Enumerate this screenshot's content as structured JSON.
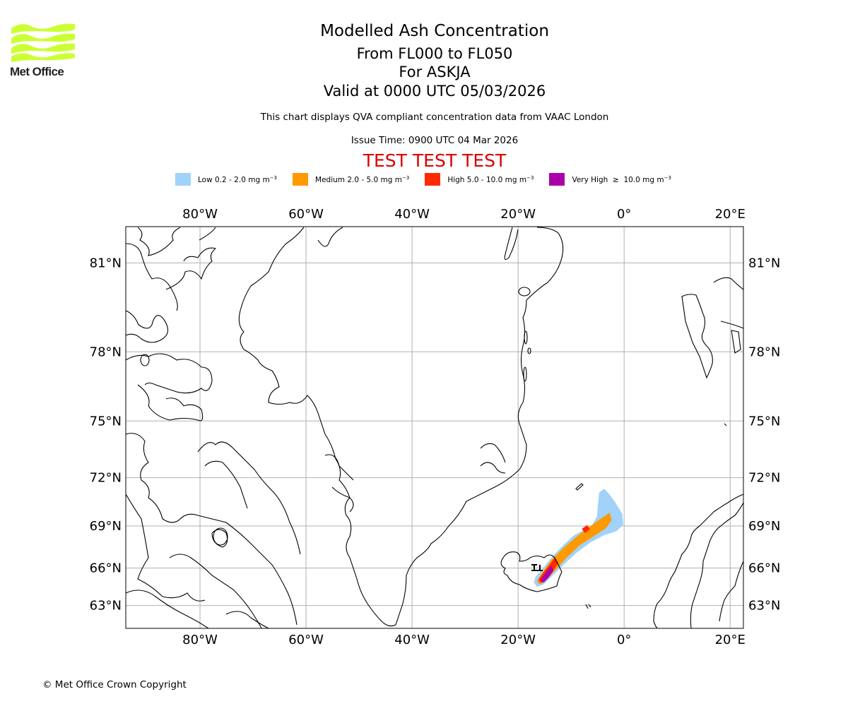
{
  "logo": {
    "text": "Met Office",
    "color": "#ccff33"
  },
  "header": {
    "title": "Modelled Ash Concentration",
    "level_range": "From FL000 to FL050",
    "volcano": "For ASKJA",
    "valid_time": "Valid at 0000 UTC 05/03/2026",
    "subtitle": "This chart displays QVA compliant concentration data from VAAC London",
    "issue_time": "Issue Time: 0900 UTC 04 Mar 2026",
    "test_banner": "TEST TEST TEST",
    "test_color": "#dd0000"
  },
  "legend": [
    {
      "label": "Low 0.2 - 2.0 mg m",
      "sup": "−3",
      "color": "#a0d2fa"
    },
    {
      "label": "Medium 2.0 - 5.0 mg m",
      "sup": "−3",
      "color": "#ff9900"
    },
    {
      "label": "High 5.0 - 10.0 mg m",
      "sup": "−3",
      "color": "#ff2a00"
    },
    {
      "label": "Very High  ≥  10.0 mg m",
      "sup": "−3",
      "color": "#aa00aa"
    }
  ],
  "chart_data": {
    "type": "map",
    "title": "Modelled Ash Concentration",
    "projection": "Mercator",
    "extent": {
      "lon": [
        -94,
        22.5
      ],
      "lat": [
        61,
        82
      ]
    },
    "lon_ticks": [
      {
        "value": -80,
        "label": "80°W"
      },
      {
        "value": -60,
        "label": "60°W"
      },
      {
        "value": -40,
        "label": "40°W"
      },
      {
        "value": -20,
        "label": "20°W"
      },
      {
        "value": 0,
        "label": "0°"
      },
      {
        "value": 20,
        "label": "20°E"
      }
    ],
    "lat_ticks": [
      {
        "value": 81,
        "label": "81°N"
      },
      {
        "value": 78,
        "label": "78°N"
      },
      {
        "value": 75,
        "label": "75°N"
      },
      {
        "value": 72,
        "label": "72°N"
      },
      {
        "value": 69,
        "label": "69°N"
      },
      {
        "value": 66,
        "label": "66°N"
      },
      {
        "value": 63,
        "label": "63°N"
      }
    ],
    "grid": true,
    "volcano_marker": {
      "name": "ASKJA",
      "lon": -16.75,
      "lat": 65.03
    },
    "ash_plume": [
      {
        "level": "Low",
        "color": "#a0d2fa",
        "polygon": [
          [
            -16.6,
            65.3
          ],
          [
            -15.5,
            65.8
          ],
          [
            -13.5,
            66.8
          ],
          [
            -11.5,
            67.6
          ],
          [
            -9.5,
            68.3
          ],
          [
            -7.5,
            68.7
          ],
          [
            -6,
            69.0
          ],
          [
            -5,
            69.6
          ],
          [
            -4.8,
            70.4
          ],
          [
            -4.6,
            71.1
          ],
          [
            -3.8,
            71.3
          ],
          [
            -2.9,
            71.0
          ],
          [
            -1.8,
            70.5
          ],
          [
            -0.5,
            69.8
          ],
          [
            -0.3,
            69.1
          ],
          [
            -1.5,
            68.7
          ],
          [
            -4,
            68.4
          ],
          [
            -6.5,
            67.9
          ],
          [
            -9,
            67.2
          ],
          [
            -11.5,
            66.3
          ],
          [
            -13.5,
            65.5
          ],
          [
            -15.2,
            64.8
          ],
          [
            -16.4,
            64.6
          ],
          [
            -16.9,
            64.9
          ]
        ]
      },
      {
        "level": "Medium",
        "color": "#ff9900",
        "polygon": [
          [
            -16.3,
            65.0
          ],
          [
            -15.2,
            65.7
          ],
          [
            -13.8,
            66.5
          ],
          [
            -11.5,
            67.4
          ],
          [
            -9,
            68.2
          ],
          [
            -6.5,
            68.9
          ],
          [
            -4.5,
            69.4
          ],
          [
            -2.8,
            69.8
          ],
          [
            -2.5,
            69.4
          ],
          [
            -3.5,
            68.9
          ],
          [
            -6,
            68.3
          ],
          [
            -8.5,
            67.7
          ],
          [
            -11,
            66.8
          ],
          [
            -13,
            65.9
          ],
          [
            -14.8,
            65.1
          ],
          [
            -15.9,
            64.8
          ]
        ]
      },
      {
        "level": "High",
        "color": "#ff2a00",
        "polygon": [
          [
            -16.0,
            65.1
          ],
          [
            -15,
            65.7
          ],
          [
            -13.8,
            66.3
          ],
          [
            -13.1,
            66.7
          ],
          [
            -12.6,
            66.4
          ],
          [
            -13.5,
            65.8
          ],
          [
            -14.6,
            65.2
          ],
          [
            -15.6,
            64.9
          ]
        ]
      },
      {
        "level": "High",
        "color": "#ff2a00",
        "polygon": [
          [
            -7.8,
            68.8
          ],
          [
            -7.0,
            69.0
          ],
          [
            -6.6,
            68.8
          ],
          [
            -7.4,
            68.6
          ]
        ]
      },
      {
        "level": "Very High",
        "color": "#aa00aa",
        "polygon": [
          [
            -15.6,
            65.1
          ],
          [
            -14.7,
            65.6
          ],
          [
            -13.8,
            66.1
          ],
          [
            -13.5,
            65.8
          ],
          [
            -14.4,
            65.3
          ],
          [
            -15.2,
            64.95
          ]
        ]
      }
    ]
  },
  "footer": {
    "copyright": "© Met Office Crown Copyright"
  }
}
